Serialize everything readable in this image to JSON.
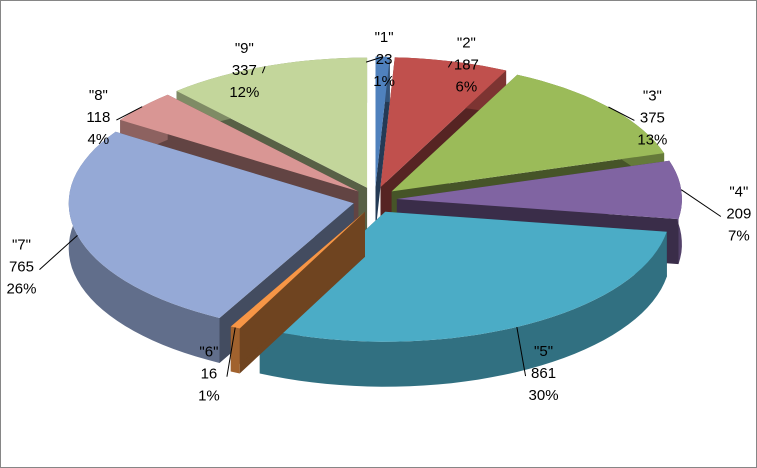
{
  "chart_data": {
    "type": "pie3d",
    "categories": [
      "\"1\"",
      "\"2\"",
      "\"3\"",
      "\"4\"",
      "\"5\"",
      "\"6\"",
      "\"7\"",
      "\"8\"",
      "\"9\""
    ],
    "values": [
      23,
      187,
      375,
      209,
      861,
      16,
      765,
      118,
      337
    ],
    "percent_labels": [
      "1%",
      "6%",
      "13%",
      "7%",
      "30%",
      "1%",
      "26%",
      "4%",
      "12%"
    ],
    "colors": [
      "#4f81bd",
      "#c0504d",
      "#9bbb59",
      "#8064a2",
      "#4bacc6",
      "#f79646",
      "#95a9d6",
      "#d99694",
      "#c3d69b"
    ]
  }
}
